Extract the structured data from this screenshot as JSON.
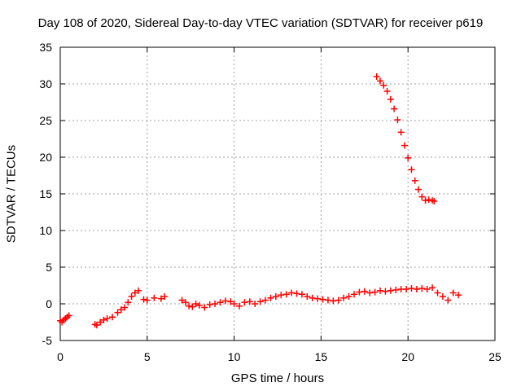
{
  "chart_data": {
    "type": "scatter",
    "title": "Day 108 of 2020, Sidereal Day-to-day VTEC variation (SDTVAR) for receiver p619",
    "xlabel": "GPS time / hours",
    "ylabel": "SDTVAR / TECUs",
    "xlim": [
      0,
      25
    ],
    "ylim": [
      -5,
      35
    ],
    "xticks": [
      "0",
      "5",
      "10",
      "15",
      "20",
      "25"
    ],
    "yticks": [
      "-5",
      "0",
      "5",
      "10",
      "15",
      "20",
      "25",
      "30",
      "35"
    ],
    "grid": true,
    "marker": "+",
    "series": [
      {
        "name": "SDTVAR",
        "color": "#ff0000",
        "x": [
          0.0,
          0.1,
          0.2,
          0.3,
          0.4,
          0.5,
          2.0,
          2.1,
          2.3,
          2.5,
          2.7,
          3.0,
          3.3,
          3.5,
          3.7,
          3.9,
          4.1,
          4.3,
          4.5,
          4.8,
          5.0,
          5.4,
          5.8,
          6.0,
          7.0,
          7.2,
          7.4,
          7.6,
          7.8,
          8.0,
          8.3,
          8.6,
          8.9,
          9.2,
          9.5,
          9.8,
          10.0,
          10.3,
          10.6,
          10.9,
          11.2,
          11.5,
          11.8,
          12.1,
          12.4,
          12.7,
          13.0,
          13.3,
          13.6,
          13.9,
          14.2,
          14.5,
          14.8,
          15.1,
          15.4,
          15.7,
          16.0,
          16.3,
          16.6,
          16.9,
          17.2,
          17.5,
          17.8,
          18.1,
          18.4,
          18.7,
          19.0,
          19.3,
          19.6,
          19.9,
          20.2,
          20.5,
          20.8,
          21.1,
          21.4,
          21.7,
          22.0,
          22.3,
          22.6,
          22.9,
          18.2,
          18.4,
          18.6,
          18.8,
          19.0,
          19.2,
          19.4,
          19.6,
          19.8,
          20.0,
          20.2,
          20.4,
          20.6,
          20.8,
          21.0,
          21.2,
          21.4,
          21.5
        ],
        "y": [
          -2.3,
          -2.5,
          -2.2,
          -2.0,
          -1.8,
          -1.6,
          -2.8,
          -2.9,
          -2.5,
          -2.2,
          -2.0,
          -1.8,
          -1.2,
          -0.8,
          -0.5,
          0.2,
          1.0,
          1.5,
          1.8,
          0.6,
          0.5,
          0.8,
          0.7,
          1.0,
          0.5,
          0.2,
          -0.3,
          -0.4,
          0.0,
          -0.2,
          -0.5,
          -0.1,
          0.0,
          0.2,
          0.4,
          0.3,
          0.0,
          -0.3,
          0.2,
          0.3,
          0.0,
          0.3,
          0.5,
          0.8,
          1.0,
          1.2,
          1.3,
          1.5,
          1.4,
          1.3,
          1.0,
          0.8,
          0.7,
          0.6,
          0.5,
          0.4,
          0.5,
          0.8,
          1.0,
          1.3,
          1.6,
          1.7,
          1.5,
          1.6,
          1.8,
          1.7,
          1.8,
          1.9,
          2.0,
          2.0,
          2.1,
          2.0,
          2.1,
          2.0,
          2.2,
          1.5,
          1.0,
          0.5,
          1.5,
          1.2,
          31.0,
          30.4,
          29.8,
          29.0,
          27.9,
          26.6,
          25.1,
          23.4,
          21.6,
          19.9,
          18.3,
          16.8,
          15.6,
          14.6,
          14.1,
          14.2,
          14.1,
          14.0
        ]
      }
    ]
  }
}
